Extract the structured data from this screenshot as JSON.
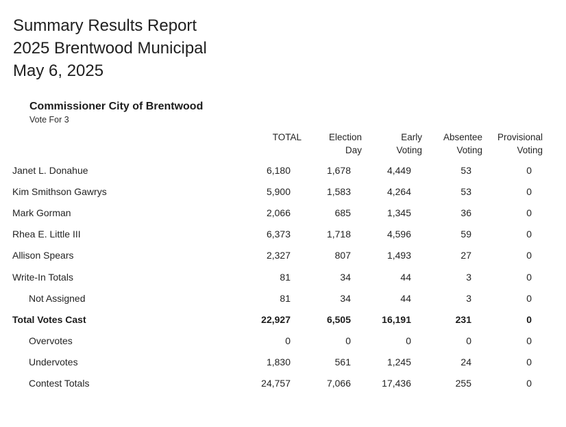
{
  "report": {
    "title": "Summary Results Report",
    "subtitle": "2025 Brentwood Municipal",
    "date": "May 6, 2025"
  },
  "contest": {
    "name": "Commissioner City of Brentwood",
    "vote_for": "Vote For 3"
  },
  "table": {
    "columns": [
      {
        "line1": "TOTAL",
        "line2": ""
      },
      {
        "line1": "Election",
        "line2": "Day"
      },
      {
        "line1": "Early",
        "line2": "Voting"
      },
      {
        "line1": "Absentee",
        "line2": "Voting"
      },
      {
        "line1": "Provisional",
        "line2": "Voting"
      }
    ],
    "rows": [
      {
        "label": "Janet L. Donahue",
        "values": [
          "6,180",
          "1,678",
          "4,449",
          "53",
          "0"
        ]
      },
      {
        "label": "Kim Smithson Gawrys",
        "values": [
          "5,900",
          "1,583",
          "4,264",
          "53",
          "0"
        ]
      },
      {
        "label": "Mark Gorman",
        "values": [
          "2,066",
          "685",
          "1,345",
          "36",
          "0"
        ]
      },
      {
        "label": "Rhea E. Little III",
        "values": [
          "6,373",
          "1,718",
          "4,596",
          "59",
          "0"
        ]
      },
      {
        "label": "Allison Spears",
        "values": [
          "2,327",
          "807",
          "1,493",
          "27",
          "0"
        ]
      },
      {
        "label": "Write-In Totals",
        "values": [
          "81",
          "34",
          "44",
          "3",
          "0"
        ]
      },
      {
        "label": "Not Assigned",
        "values": [
          "81",
          "34",
          "44",
          "3",
          "0"
        ]
      },
      {
        "label": "Total Votes Cast",
        "values": [
          "22,927",
          "6,505",
          "16,191",
          "231",
          "0"
        ]
      },
      {
        "label": "Overvotes",
        "values": [
          "0",
          "0",
          "0",
          "0",
          "0"
        ]
      },
      {
        "label": "Undervotes",
        "values": [
          "1,830",
          "561",
          "1,245",
          "24",
          "0"
        ]
      },
      {
        "label": "Contest Totals",
        "values": [
          "24,757",
          "7,066",
          "17,436",
          "255",
          "0"
        ]
      }
    ]
  }
}
